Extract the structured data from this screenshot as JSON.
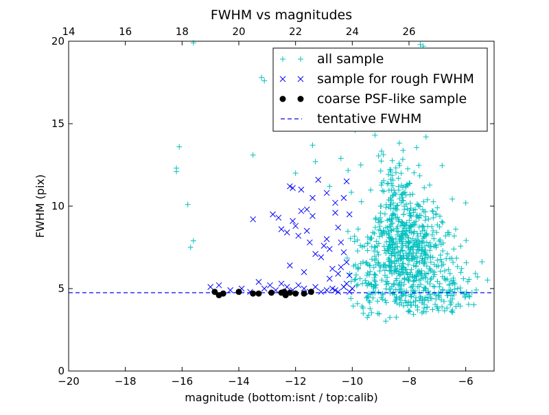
{
  "chart_data": {
    "type": "scatter",
    "title": "FWHM vs magnitudes",
    "xlabel": "magnitude (bottom:isnt / top:calib)",
    "ylabel": "FWHM (pix)",
    "xlim": [
      -20,
      -5
    ],
    "ylim": [
      0,
      20
    ],
    "x_ticks": [
      -20,
      -18,
      -16,
      -14,
      -12,
      -10,
      -8,
      -6
    ],
    "y_ticks": [
      0,
      5,
      10,
      15,
      20
    ],
    "x_ticks_top": [
      14,
      16,
      18,
      20,
      22,
      24,
      26
    ],
    "top_axis_offset": 34,
    "grid": false,
    "legend_position": "top-right",
    "legend": [
      {
        "label": "all sample",
        "marker": "plus",
        "color": "#00bfbf"
      },
      {
        "label": "sample for rough FWHM",
        "marker": "x",
        "color": "#0000ff"
      },
      {
        "label": "coarse PSF-like sample",
        "marker": "dot",
        "color": "#000000"
      },
      {
        "label": "tentative FWHM",
        "marker": "dashed-line",
        "color": "#0000ff"
      }
    ],
    "series": [
      {
        "name": "all sample",
        "marker": "plus",
        "color": "#00bfbf",
        "points": [
          [
            -16.2,
            12.1
          ],
          [
            -16.2,
            12.3
          ],
          [
            -16.1,
            13.6
          ],
          [
            -15.8,
            10.1
          ],
          [
            -15.7,
            7.5
          ],
          [
            -15.6,
            7.9
          ],
          [
            -15.6,
            19.9
          ],
          [
            -13.5,
            13.1
          ],
          [
            -13.2,
            17.8
          ],
          [
            -13.1,
            17.6
          ],
          [
            -11.4,
            13.7
          ],
          [
            -12.0,
            12.0
          ],
          [
            -11.3,
            12.7
          ],
          [
            -10.4,
            12.9
          ],
          [
            -9.7,
            12.5
          ],
          [
            -10.5,
            15.5
          ],
          [
            -9.4,
            15.3
          ],
          [
            -9.9,
            14.6
          ],
          [
            -9.2,
            14.3
          ],
          [
            -8.6,
            14.8
          ],
          [
            -8.4,
            15.8
          ],
          [
            -8.1,
            16.6
          ],
          [
            -8.0,
            17.4
          ],
          [
            -7.8,
            17.9
          ],
          [
            -7.6,
            19.8
          ],
          [
            -7.5,
            19.7
          ],
          [
            -7.4,
            14.2
          ],
          [
            -6.0,
            10.2
          ],
          [
            -7.0,
            9.9
          ],
          [
            -10.8,
            11.2
          ]
        ],
        "clusters": [
          {
            "cx": -8.0,
            "cy": 7.2,
            "sx": 0.7,
            "sy": 1.6,
            "n": 520
          },
          {
            "cx": -8.4,
            "cy": 10.8,
            "sx": 0.5,
            "sy": 1.3,
            "n": 110
          },
          {
            "cx": -9.4,
            "cy": 6.0,
            "sx": 0.4,
            "sy": 1.4,
            "n": 90
          },
          {
            "cx": -6.6,
            "cy": 5.0,
            "sx": 0.6,
            "sy": 0.8,
            "n": 80
          },
          {
            "cx": -7.8,
            "cy": 4.4,
            "sx": 0.8,
            "sy": 0.4,
            "n": 70
          }
        ]
      },
      {
        "name": "sample for rough FWHM",
        "marker": "x",
        "color": "#0000ff",
        "points": [
          [
            -15.0,
            5.1
          ],
          [
            -14.7,
            5.2
          ],
          [
            -14.3,
            4.9
          ],
          [
            -13.9,
            5.0
          ],
          [
            -13.6,
            4.8
          ],
          [
            -13.3,
            5.4
          ],
          [
            -13.1,
            5.0
          ],
          [
            -12.9,
            5.2
          ],
          [
            -12.7,
            4.9
          ],
          [
            -12.5,
            5.3
          ],
          [
            -12.3,
            5.1
          ],
          [
            -12.1,
            4.9
          ],
          [
            -11.9,
            5.2
          ],
          [
            -11.7,
            5.0
          ],
          [
            -11.5,
            4.8
          ],
          [
            -11.3,
            5.1
          ],
          [
            -11.1,
            4.8
          ],
          [
            -10.9,
            4.9
          ],
          [
            -10.7,
            5.0
          ],
          [
            -10.5,
            4.8
          ],
          [
            -10.3,
            5.1
          ],
          [
            -10.1,
            4.8
          ],
          [
            -10.0,
            5.0
          ],
          [
            -13.5,
            9.2
          ],
          [
            -12.8,
            9.5
          ],
          [
            -12.6,
            9.3
          ],
          [
            -12.5,
            8.6
          ],
          [
            -12.3,
            8.4
          ],
          [
            -12.1,
            9.1
          ],
          [
            -12.0,
            8.8
          ],
          [
            -11.9,
            8.2
          ],
          [
            -11.8,
            9.7
          ],
          [
            -11.6,
            8.5
          ],
          [
            -11.5,
            7.8
          ],
          [
            -11.4,
            9.4
          ],
          [
            -11.3,
            7.1
          ],
          [
            -11.1,
            6.9
          ],
          [
            -11.0,
            7.6
          ],
          [
            -10.9,
            8.0
          ],
          [
            -10.8,
            7.4
          ],
          [
            -10.7,
            6.2
          ],
          [
            -10.6,
            9.6
          ],
          [
            -10.5,
            8.7
          ],
          [
            -10.4,
            7.8
          ],
          [
            -10.3,
            7.2
          ],
          [
            -10.2,
            6.6
          ],
          [
            -10.1,
            5.8
          ],
          [
            -12.2,
            11.2
          ],
          [
            -12.1,
            11.1
          ],
          [
            -11.8,
            11.0
          ],
          [
            -11.6,
            9.8
          ],
          [
            -11.4,
            10.5
          ],
          [
            -11.2,
            11.6
          ],
          [
            -10.9,
            10.8
          ],
          [
            -10.6,
            10.2
          ],
          [
            -10.3,
            10.5
          ],
          [
            -10.2,
            11.5
          ],
          [
            -10.1,
            9.5
          ],
          [
            -12.2,
            6.4
          ],
          [
            -11.7,
            6.0
          ],
          [
            -10.8,
            5.6
          ],
          [
            -10.5,
            5.9
          ],
          [
            -10.4,
            6.3
          ],
          [
            -10.6,
            4.9
          ],
          [
            -10.2,
            5.3
          ]
        ]
      },
      {
        "name": "coarse PSF-like sample",
        "marker": "dot",
        "color": "#000000",
        "points": [
          [
            -14.85,
            4.8
          ],
          [
            -14.7,
            4.6
          ],
          [
            -14.55,
            4.7
          ],
          [
            -14.0,
            4.8
          ],
          [
            -13.5,
            4.7
          ],
          [
            -13.3,
            4.7
          ],
          [
            -12.85,
            4.75
          ],
          [
            -12.5,
            4.75
          ],
          [
            -12.35,
            4.6
          ],
          [
            -12.2,
            4.75
          ],
          [
            -12.0,
            4.7
          ],
          [
            -11.7,
            4.7
          ],
          [
            -11.45,
            4.8
          ],
          [
            -12.4,
            4.8
          ]
        ]
      }
    ],
    "tentative_fwhm": 4.75
  }
}
